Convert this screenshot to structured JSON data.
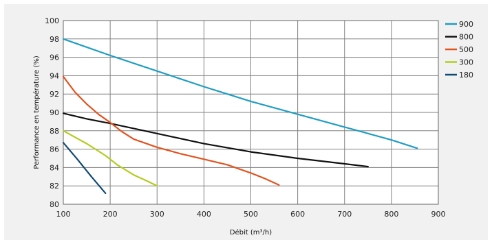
{
  "chart_data": {
    "type": "line",
    "title": "",
    "xlabel": "Débit (m³/h)",
    "ylabel": "Performance en température (%)",
    "xlim": [
      100,
      900
    ],
    "ylim": [
      80,
      100
    ],
    "xticks": [
      100,
      200,
      300,
      400,
      500,
      600,
      700,
      800,
      900
    ],
    "yticks": [
      80,
      82,
      84,
      86,
      88,
      90,
      92,
      94,
      96,
      98,
      100
    ],
    "grid": true,
    "legend_position": "right",
    "series": [
      {
        "name": "900",
        "color": "#1f9dc4",
        "points": [
          [
            100,
            98.0
          ],
          [
            200,
            96.2
          ],
          [
            300,
            94.5
          ],
          [
            400,
            92.8
          ],
          [
            500,
            91.2
          ],
          [
            600,
            89.8
          ],
          [
            700,
            88.4
          ],
          [
            800,
            87.0
          ],
          [
            855,
            86.1
          ]
        ]
      },
      {
        "name": "800",
        "color": "#111111",
        "points": [
          [
            100,
            89.9
          ],
          [
            150,
            89.3
          ],
          [
            200,
            88.8
          ],
          [
            300,
            87.7
          ],
          [
            400,
            86.6
          ],
          [
            500,
            85.7
          ],
          [
            600,
            85.0
          ],
          [
            700,
            84.4
          ],
          [
            750,
            84.1
          ]
        ]
      },
      {
        "name": "500",
        "color": "#e2531f",
        "points": [
          [
            100,
            93.9
          ],
          [
            125,
            92.2
          ],
          [
            150,
            90.9
          ],
          [
            175,
            89.8
          ],
          [
            200,
            88.9
          ],
          [
            225,
            87.9
          ],
          [
            250,
            87.1
          ],
          [
            300,
            86.2
          ],
          [
            350,
            85.5
          ],
          [
            400,
            84.9
          ],
          [
            450,
            84.3
          ],
          [
            500,
            83.4
          ],
          [
            530,
            82.8
          ],
          [
            560,
            82.1
          ]
        ]
      },
      {
        "name": "300",
        "color": "#b5cc1e",
        "points": [
          [
            100,
            88.0
          ],
          [
            150,
            86.6
          ],
          [
            190,
            85.3
          ],
          [
            215,
            84.3
          ],
          [
            250,
            83.2
          ],
          [
            280,
            82.5
          ],
          [
            300,
            82.0
          ]
        ]
      },
      {
        "name": "180",
        "color": "#0f4a73",
        "points": [
          [
            100,
            86.7
          ],
          [
            130,
            84.9
          ],
          [
            160,
            83.0
          ],
          [
            190,
            81.2
          ]
        ]
      }
    ]
  }
}
